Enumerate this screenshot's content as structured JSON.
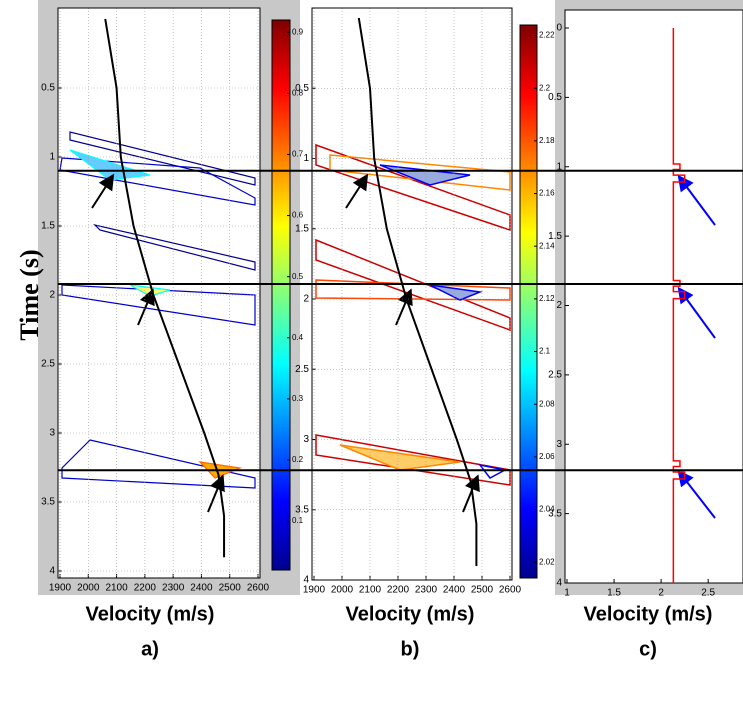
{
  "chart_data": [
    {
      "type": "line",
      "ylabel": "Time (s)",
      "xlabel": "Velocity (m/s)",
      "label": "a)",
      "xlim": [
        1900,
        2600
      ],
      "xticks": [
        1900,
        2000,
        2100,
        2200,
        2300,
        2400,
        2500,
        2600
      ],
      "ylim": [
        0,
        4
      ],
      "yticks": [
        0.5,
        1,
        1.5,
        2,
        2.5,
        3,
        3.5,
        4
      ],
      "grid": true,
      "hlines": [
        1.1,
        1.92,
        3.27
      ],
      "colorbar": {
        "lim": [
          0.02,
          0.92
        ],
        "ticks": [
          0.1,
          0.2,
          0.3,
          0.4,
          0.5,
          0.6,
          0.7,
          0.8,
          0.9
        ]
      },
      "series": [
        {
          "color": "#000000",
          "x": [
            2060,
            2100,
            2115,
            2160,
            2230,
            2320,
            2410,
            2460,
            2480,
            2480
          ],
          "y": [
            0,
            0.5,
            1,
            1.5,
            2,
            2.5,
            3,
            3.3,
            3.6,
            3.9
          ]
        }
      ]
    },
    {
      "type": "line",
      "xlabel": "Velocity (m/s)",
      "label": "b)",
      "xlim": [
        1900,
        2600
      ],
      "xticks": [
        1900,
        2000,
        2100,
        2200,
        2300,
        2400,
        2500,
        2600
      ],
      "ylim": [
        0,
        4
      ],
      "yticks": [
        0.5,
        1,
        1.5,
        2,
        2.5,
        3,
        3.5,
        4
      ],
      "grid": true,
      "colorbar": {
        "lim": [
          2.014,
          2.224
        ],
        "ticks": [
          2.02,
          2.04,
          2.06,
          2.08,
          2.1,
          2.12,
          2.14,
          2.16,
          2.18,
          2.2,
          2.22
        ]
      },
      "series": [
        {
          "color": "#000000",
          "x": [
            2060,
            2100,
            2115,
            2160,
            2230,
            2320,
            2410,
            2460,
            2480,
            2480
          ],
          "y": [
            0,
            0.5,
            1,
            1.5,
            2,
            2.5,
            3,
            3.3,
            3.6,
            3.9
          ]
        }
      ]
    },
    {
      "type": "line",
      "xlabel": "Velocity (m/s)",
      "label": "c)",
      "xlim": [
        1,
        2.87
      ],
      "xticks": [
        1,
        1.5,
        2,
        2.5
      ],
      "ylim": [
        0,
        4
      ],
      "yticks": [
        0,
        0.5,
        1,
        1.5,
        2,
        2.5,
        3,
        3.5,
        4
      ],
      "grid": false,
      "series": [
        {
          "color": "#ff0000",
          "x": [
            2.13,
            2.13,
            2.2,
            2.2,
            2.13,
            2.13,
            2.25,
            2.25,
            2.13,
            2.13,
            2.2,
            2.2,
            2.13,
            2.13,
            2.25,
            2.25,
            2.13,
            2.13,
            2.2,
            2.2,
            2.13,
            2.13,
            2.25,
            2.25,
            2.13,
            2.13
          ],
          "y": [
            0,
            0.98,
            0.98,
            1.02,
            1.02,
            1.06,
            1.06,
            1.11,
            1.11,
            1.82,
            1.82,
            1.86,
            1.86,
            1.9,
            1.9,
            1.95,
            1.95,
            3.12,
            3.12,
            3.16,
            3.16,
            3.2,
            3.2,
            3.25,
            3.25,
            4
          ]
        }
      ]
    }
  ]
}
